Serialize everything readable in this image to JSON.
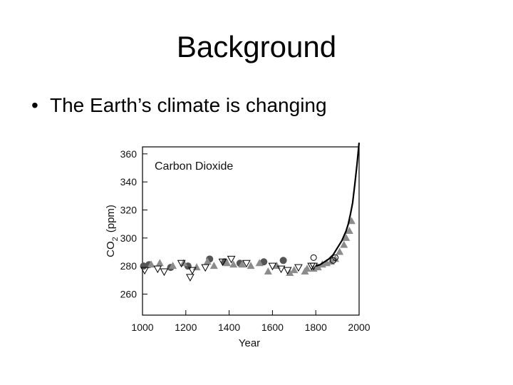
{
  "slide": {
    "title": "Background",
    "bullet": "The Earth’s climate is changing"
  },
  "chart_data": {
    "type": "scatter",
    "title": "Carbon Dioxide",
    "xlabel": "Year",
    "ylabel_main": "CO",
    "ylabel_sub": "2",
    "ylabel_unit": "(ppm)",
    "xlim": [
      1000,
      2000
    ],
    "ylim": [
      245,
      365
    ],
    "x_ticks": [
      1000,
      1200,
      1400,
      1600,
      1800,
      2000
    ],
    "y_ticks": [
      260,
      280,
      300,
      320,
      340,
      360
    ],
    "grid": false,
    "colors": {
      "gray": "#8c8c8c",
      "dark": "#555555",
      "line": "#000000"
    },
    "series": [
      {
        "marker": "circle-dark",
        "x": [
          1005,
          1030,
          1130,
          1210,
          1310,
          1380,
          1450,
          1560,
          1650
        ],
        "y": [
          280,
          281,
          279,
          280,
          285,
          283,
          282,
          283,
          284
        ]
      },
      {
        "marker": "triangle-gray",
        "x": [
          1040,
          1080,
          1140,
          1190,
          1250,
          1300,
          1330,
          1390,
          1420,
          1460,
          1500,
          1540,
          1580,
          1620,
          1680,
          1700,
          1750,
          1760,
          1790,
          1810,
          1830,
          1850,
          1870,
          1890,
          1910,
          1930,
          1940,
          1955,
          1965
        ],
        "y": [
          281,
          282,
          280,
          282,
          279,
          283,
          280,
          282,
          281,
          281,
          280,
          282,
          276,
          280,
          275,
          277,
          276,
          278,
          278,
          279,
          281,
          282,
          283,
          285,
          290,
          295,
          300,
          305,
          312
        ]
      },
      {
        "marker": "triangle-open",
        "x": [
          1010,
          1070,
          1100,
          1180,
          1220,
          1230,
          1290,
          1370,
          1410,
          1480,
          1600,
          1640,
          1670,
          1720,
          1780,
          1790
        ],
        "y": [
          277,
          278,
          276,
          282,
          272,
          277,
          279,
          283,
          285,
          282,
          280,
          278,
          277,
          279,
          280,
          280
        ]
      },
      {
        "marker": "circle-open",
        "x": [
          1790,
          1880,
          1890
        ],
        "y": [
          286,
          284,
          286
        ]
      },
      {
        "marker": "curve-black",
        "x": [
          1800,
          1820,
          1840,
          1860,
          1880,
          1900,
          1920,
          1940,
          1950,
          1960,
          1970,
          1980,
          1990,
          2000
        ],
        "y": [
          280,
          281,
          283,
          285,
          288,
          293,
          298,
          305,
          310,
          317,
          325,
          338,
          352,
          368
        ]
      }
    ]
  }
}
